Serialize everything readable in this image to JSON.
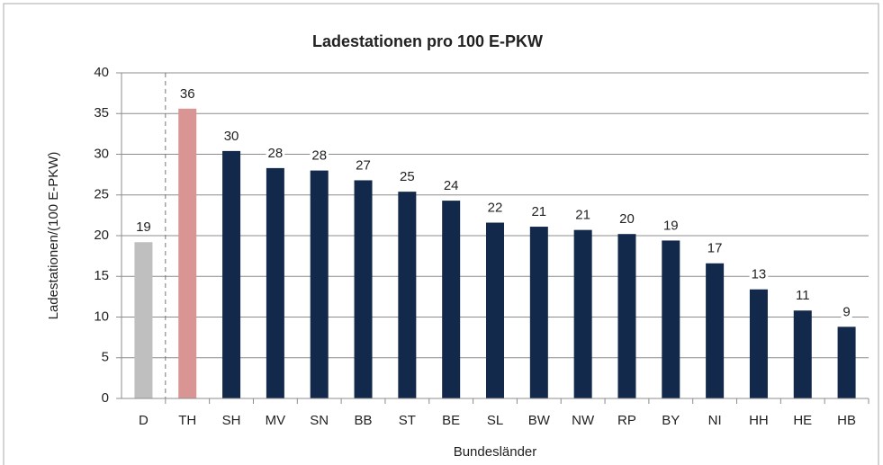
{
  "chart_data": {
    "type": "bar",
    "title": "Ladestationen pro 100 E-PKW",
    "x_label": "Bundesländer",
    "y_label": "Ladestationen/(100 E-PKW)",
    "categories": [
      "D",
      "TH",
      "SH",
      "MV",
      "SN",
      "BB",
      "ST",
      "BE",
      "SL",
      "BW",
      "NW",
      "RP",
      "BY",
      "NI",
      "HH",
      "HE",
      "HB"
    ],
    "values": [
      19.2,
      35.6,
      30.4,
      28.3,
      28.0,
      26.8,
      25.4,
      24.3,
      21.6,
      21.1,
      20.7,
      20.2,
      19.4,
      16.6,
      13.4,
      10.8,
      8.8
    ],
    "value_labels": [
      "19",
      "36",
      "30",
      "28",
      "28",
      "27",
      "25",
      "24",
      "22",
      "21",
      "21",
      "20",
      "19",
      "17",
      "13",
      "11",
      "9"
    ],
    "colors": [
      "#bfbfbf",
      "#d99594",
      "#13294b",
      "#13294b",
      "#13294b",
      "#13294b",
      "#13294b",
      "#13294b",
      "#13294b",
      "#13294b",
      "#13294b",
      "#13294b",
      "#13294b",
      "#13294b",
      "#13294b",
      "#13294b",
      "#13294b"
    ],
    "ylim": [
      0,
      40
    ],
    "yticks": [
      0,
      5,
      10,
      15,
      20,
      25,
      30,
      35,
      40
    ],
    "grid": true
  }
}
